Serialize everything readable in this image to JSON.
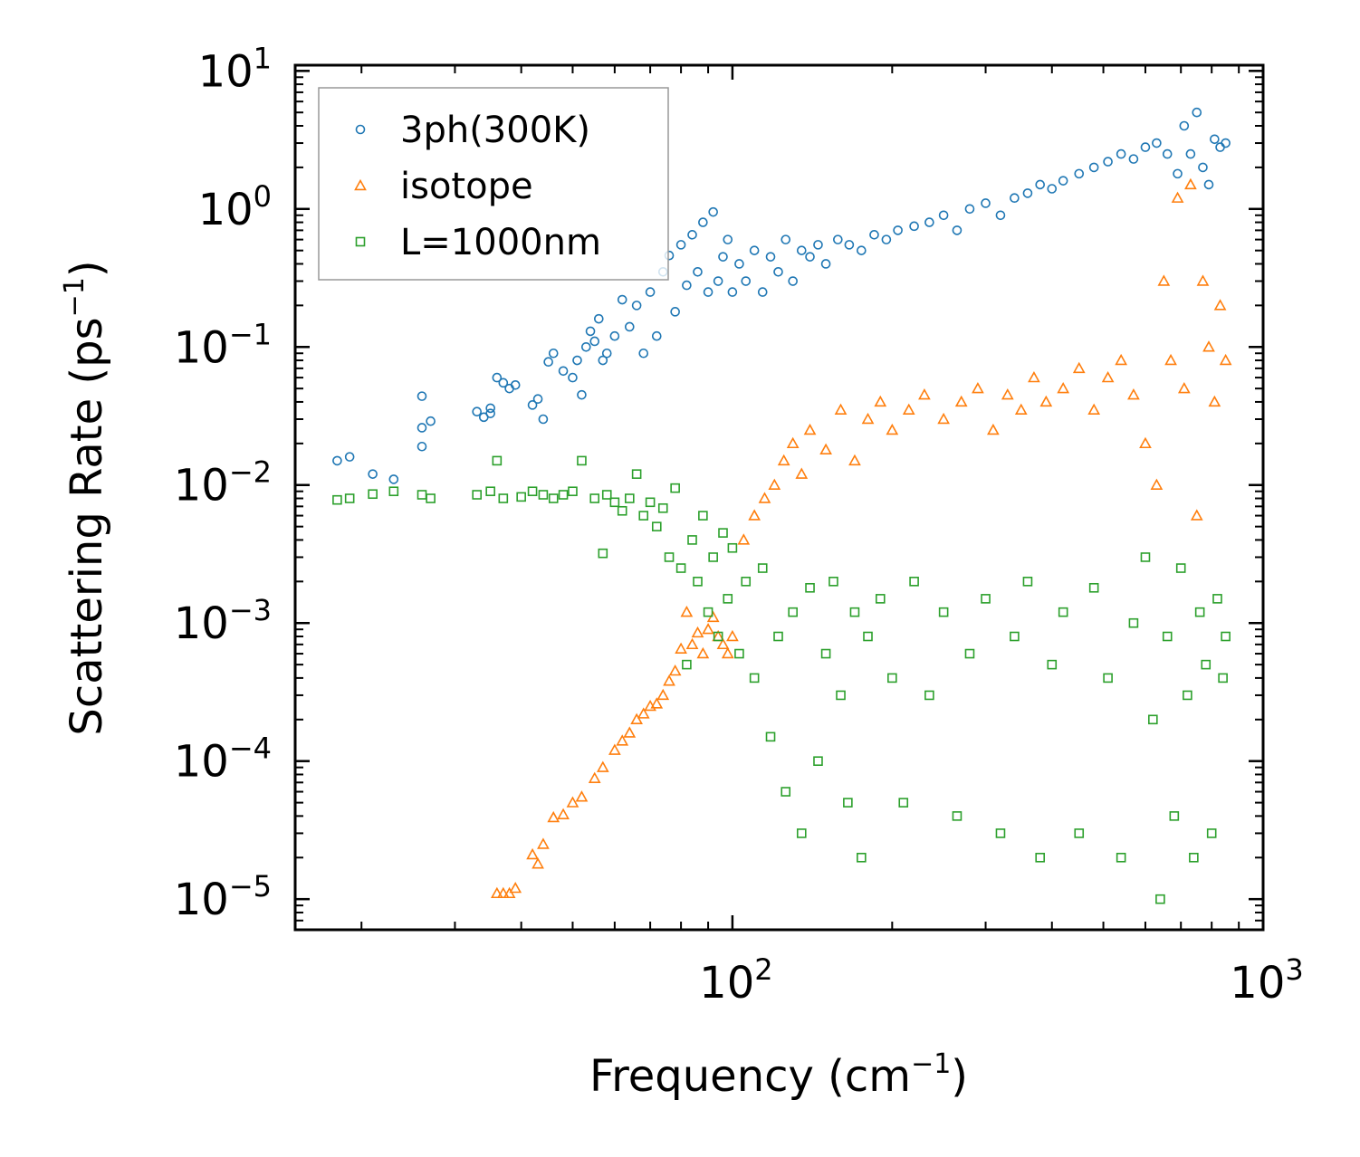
{
  "chart_data": {
    "type": "scatter",
    "title": "",
    "xlabel": "Frequency (cm",
    "xlabel_sup": "−1",
    "xlabel_end": ")",
    "ylabel": "Scattering Rate (ps",
    "ylabel_sup": "−1",
    "ylabel_end": ")",
    "xscale": "log",
    "yscale": "log",
    "xlim": [
      15,
      1000
    ],
    "ylim": [
      6e-06,
      11
    ],
    "x_ticks": [
      {
        "value": 100,
        "base": "10",
        "exp": "2"
      },
      {
        "value": 1000,
        "base": "10",
        "exp": "3"
      }
    ],
    "y_ticks": [
      {
        "value": 10,
        "base": "10",
        "exp": "1"
      },
      {
        "value": 1,
        "base": "10",
        "exp": "0"
      },
      {
        "value": 0.1,
        "base": "10",
        "exp": "−1"
      },
      {
        "value": 0.01,
        "base": "10",
        "exp": "−2"
      },
      {
        "value": 0.001,
        "base": "10",
        "exp": "−3"
      },
      {
        "value": 0.0001,
        "base": "10",
        "exp": "−4"
      },
      {
        "value": 1e-05,
        "base": "10",
        "exp": "−5"
      }
    ],
    "legend_position": "top-left",
    "series": [
      {
        "name": "3ph(300K)",
        "color": "#1f77b4",
        "marker": "circle",
        "x": [
          18,
          19,
          21,
          23,
          26,
          26,
          26,
          27,
          33,
          34,
          35,
          35,
          36,
          37,
          38,
          39,
          42,
          43,
          44,
          45,
          46,
          48,
          50,
          51,
          52,
          53,
          54,
          55,
          56,
          57,
          58,
          60,
          62,
          64,
          66,
          68,
          70,
          72,
          74,
          76,
          78,
          80,
          82,
          84,
          86,
          88,
          90,
          92,
          94,
          96,
          98,
          100,
          103,
          106,
          110,
          114,
          118,
          122,
          126,
          130,
          135,
          140,
          145,
          150,
          158,
          166,
          175,
          185,
          195,
          205,
          220,
          235,
          250,
          265,
          280,
          300,
          320,
          340,
          360,
          380,
          400,
          420,
          450,
          480,
          510,
          540,
          570,
          600,
          630,
          660,
          690,
          710,
          730,
          750,
          770,
          790,
          810,
          830,
          850
        ],
        "y": [
          0.015,
          0.016,
          0.012,
          0.011,
          0.026,
          0.019,
          0.044,
          0.029,
          0.034,
          0.031,
          0.033,
          0.036,
          0.06,
          0.055,
          0.05,
          0.053,
          0.038,
          0.042,
          0.03,
          0.078,
          0.09,
          0.067,
          0.06,
          0.08,
          0.045,
          0.1,
          0.13,
          0.11,
          0.16,
          0.08,
          0.09,
          0.12,
          0.22,
          0.14,
          0.2,
          0.09,
          0.25,
          0.12,
          0.35,
          0.46,
          0.18,
          0.55,
          0.28,
          0.65,
          0.35,
          0.8,
          0.25,
          0.95,
          0.3,
          0.45,
          0.6,
          0.25,
          0.4,
          0.3,
          0.5,
          0.25,
          0.45,
          0.35,
          0.6,
          0.3,
          0.5,
          0.45,
          0.55,
          0.4,
          0.6,
          0.55,
          0.5,
          0.65,
          0.6,
          0.7,
          0.75,
          0.8,
          0.9,
          0.7,
          1.0,
          1.1,
          0.9,
          1.2,
          1.3,
          1.5,
          1.4,
          1.6,
          1.8,
          2.0,
          2.2,
          2.5,
          2.3,
          2.8,
          3.0,
          2.5,
          1.8,
          4.0,
          2.5,
          5.0,
          2.0,
          1.5,
          3.2,
          2.8,
          3.0
        ]
      },
      {
        "name": "isotope",
        "color": "#ff7f0e",
        "marker": "triangle",
        "x": [
          36,
          37,
          38,
          39,
          42,
          43,
          44,
          46,
          48,
          50,
          52,
          55,
          57,
          60,
          62,
          64,
          66,
          68,
          70,
          72,
          74,
          76,
          78,
          80,
          82,
          84,
          86,
          88,
          90,
          92,
          94,
          96,
          98,
          100,
          105,
          110,
          115,
          120,
          125,
          130,
          135,
          140,
          150,
          160,
          170,
          180,
          190,
          200,
          215,
          230,
          250,
          270,
          290,
          310,
          330,
          350,
          370,
          390,
          420,
          450,
          480,
          510,
          540,
          570,
          600,
          630,
          650,
          670,
          690,
          710,
          730,
          750,
          770,
          790,
          810,
          830,
          850
        ],
        "y": [
          1.1e-05,
          1.1e-05,
          1.1e-05,
          1.2e-05,
          2.1e-05,
          1.8e-05,
          2.5e-05,
          3.9e-05,
          4.1e-05,
          5e-05,
          5.5e-05,
          7.5e-05,
          9e-05,
          0.00012,
          0.00014,
          0.00016,
          0.0002,
          0.00022,
          0.00025,
          0.00026,
          0.0003,
          0.00038,
          0.00045,
          0.00065,
          0.0012,
          0.0007,
          0.00085,
          0.0006,
          0.0009,
          0.0011,
          0.0008,
          0.0007,
          0.0006,
          0.0008,
          0.004,
          0.006,
          0.008,
          0.01,
          0.015,
          0.02,
          0.012,
          0.025,
          0.018,
          0.035,
          0.015,
          0.03,
          0.04,
          0.025,
          0.035,
          0.045,
          0.03,
          0.04,
          0.05,
          0.025,
          0.045,
          0.035,
          0.06,
          0.04,
          0.05,
          0.07,
          0.035,
          0.06,
          0.08,
          0.045,
          0.02,
          0.01,
          0.3,
          0.08,
          1.2,
          0.05,
          1.5,
          0.006,
          0.3,
          0.1,
          0.04,
          0.2,
          0.08
        ]
      },
      {
        "name": "L=1000nm",
        "color": "#2ca02c",
        "marker": "square",
        "x": [
          18,
          19,
          21,
          23,
          26,
          27,
          33,
          35,
          36,
          37,
          40,
          42,
          44,
          46,
          48,
          50,
          52,
          55,
          57,
          58,
          60,
          62,
          64,
          66,
          68,
          70,
          72,
          74,
          76,
          78,
          80,
          82,
          84,
          86,
          88,
          90,
          92,
          94,
          96,
          98,
          100,
          103,
          106,
          110,
          114,
          118,
          122,
          126,
          130,
          135,
          140,
          145,
          150,
          155,
          160,
          165,
          170,
          175,
          180,
          190,
          200,
          210,
          220,
          235,
          250,
          265,
          280,
          300,
          320,
          340,
          360,
          380,
          400,
          420,
          450,
          480,
          510,
          540,
          570,
          600,
          620,
          640,
          660,
          680,
          700,
          720,
          740,
          760,
          780,
          800,
          820,
          840,
          850
        ],
        "y": [
          0.0078,
          0.008,
          0.0086,
          0.009,
          0.0085,
          0.008,
          0.0085,
          0.009,
          0.015,
          0.008,
          0.0082,
          0.009,
          0.0085,
          0.008,
          0.0085,
          0.009,
          0.015,
          0.008,
          0.0032,
          0.0085,
          0.0075,
          0.0065,
          0.008,
          0.012,
          0.006,
          0.0075,
          0.005,
          0.0068,
          0.003,
          0.0095,
          0.0025,
          0.0005,
          0.004,
          0.002,
          0.006,
          0.0012,
          0.003,
          0.0008,
          0.0045,
          0.0015,
          0.0035,
          0.0006,
          0.002,
          0.0004,
          0.0025,
          0.00015,
          0.0008,
          6e-05,
          0.0012,
          3e-05,
          0.0018,
          0.0001,
          0.0006,
          0.002,
          0.0003,
          5e-05,
          0.0012,
          2e-05,
          0.0008,
          0.0015,
          0.0004,
          5e-05,
          0.002,
          0.0003,
          0.0012,
          4e-05,
          0.0006,
          0.0015,
          3e-05,
          0.0008,
          0.002,
          2e-05,
          0.0005,
          0.0012,
          3e-05,
          0.0018,
          0.0004,
          2e-05,
          0.001,
          0.003,
          0.0002,
          1e-05,
          0.0008,
          4e-05,
          0.0025,
          0.0003,
          2e-05,
          0.0012,
          0.0005,
          3e-05,
          0.0015,
          0.0004,
          0.0008
        ]
      }
    ]
  }
}
